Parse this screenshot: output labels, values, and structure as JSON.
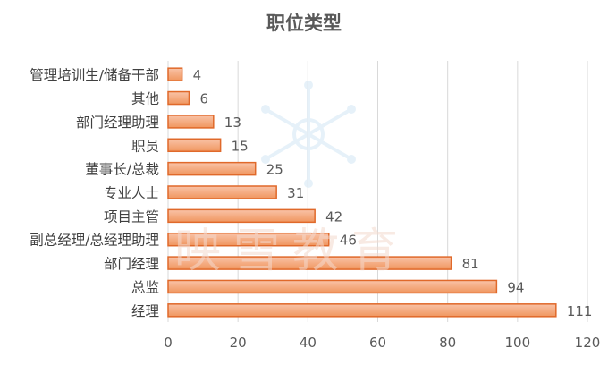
{
  "chart_data": {
    "type": "bar",
    "orientation": "horizontal",
    "title": "职位类型",
    "categories": [
      "管理培训生/储备干部",
      "其他",
      "部门经理助理",
      "职员",
      "董事长/总裁",
      "专业人士",
      "项目主管",
      "副总经理/总经理助理",
      "部门经理",
      "总监",
      "经理"
    ],
    "values": [
      4,
      6,
      13,
      15,
      25,
      31,
      42,
      46,
      81,
      94,
      111
    ],
    "xlim": [
      0,
      120
    ],
    "xticks": [
      0,
      20,
      40,
      60,
      80,
      100,
      120
    ],
    "grid": true,
    "legend": "none",
    "colors": {
      "bar_fill_top": "#f9c3a8",
      "bar_fill_bottom": "#f0965f",
      "bar_stroke": "#e0692a",
      "grid": "#d9d9d9",
      "label": "#404040",
      "value_label": "#595959",
      "title": "#595959"
    }
  },
  "watermark": {
    "text": "映雪教育"
  }
}
